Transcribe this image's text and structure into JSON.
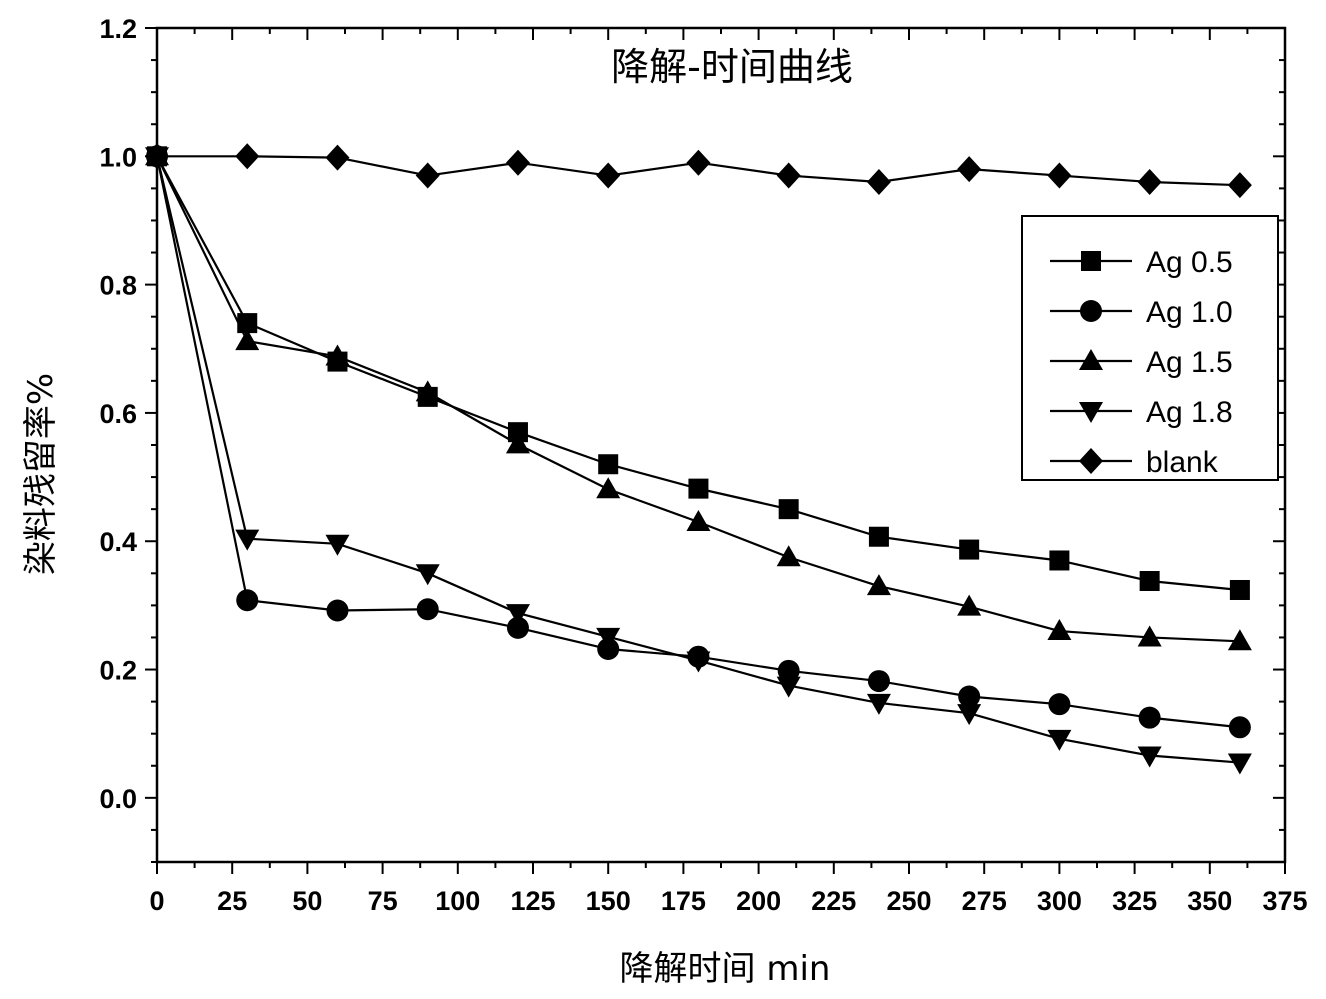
{
  "chart_data": {
    "type": "line",
    "title": "降解-时间曲线",
    "xlabel": "降解时间 min",
    "ylabel": "染料残留率%",
    "xlim": [
      0,
      375
    ],
    "ylim": [
      -0.1,
      1.2
    ],
    "xticks": [
      "0",
      "25",
      "50",
      "75",
      "100",
      "125",
      "150",
      "175",
      "200",
      "225",
      "250",
      "275",
      "300",
      "325",
      "350",
      "375"
    ],
    "yticks": [
      "0.0",
      "0.2",
      "0.4",
      "0.6",
      "0.8",
      "1.0",
      "1.2"
    ],
    "grid": false,
    "legend_position": "right",
    "x": [
      0,
      30,
      60,
      90,
      120,
      150,
      180,
      210,
      240,
      270,
      300,
      330,
      360
    ],
    "series": [
      {
        "name": "Ag 0.5",
        "marker": "square",
        "values": [
          1.0,
          0.74,
          0.68,
          0.625,
          0.57,
          0.52,
          0.482,
          0.45,
          0.407,
          0.387,
          0.37,
          0.338,
          0.324
        ]
      },
      {
        "name": "Ag 1.0",
        "marker": "circle",
        "values": [
          1.0,
          0.308,
          0.292,
          0.294,
          0.265,
          0.232,
          0.22,
          0.198,
          0.182,
          0.158,
          0.146,
          0.125,
          0.11
        ]
      },
      {
        "name": "Ag 1.5",
        "marker": "triangle-up",
        "values": [
          1.0,
          0.712,
          0.688,
          0.632,
          0.551,
          0.481,
          0.43,
          0.375,
          0.33,
          0.298,
          0.26,
          0.25,
          0.244
        ]
      },
      {
        "name": "Ag 1.8",
        "marker": "triangle-down",
        "values": [
          1.0,
          0.404,
          0.396,
          0.35,
          0.288,
          0.251,
          0.214,
          0.175,
          0.148,
          0.132,
          0.092,
          0.066,
          0.055
        ]
      },
      {
        "name": "blank",
        "marker": "diamond",
        "values": [
          1.0,
          1.0,
          0.998,
          0.97,
          0.99,
          0.97,
          0.99,
          0.97,
          0.96,
          0.98,
          0.97,
          0.96,
          0.955
        ]
      }
    ]
  }
}
